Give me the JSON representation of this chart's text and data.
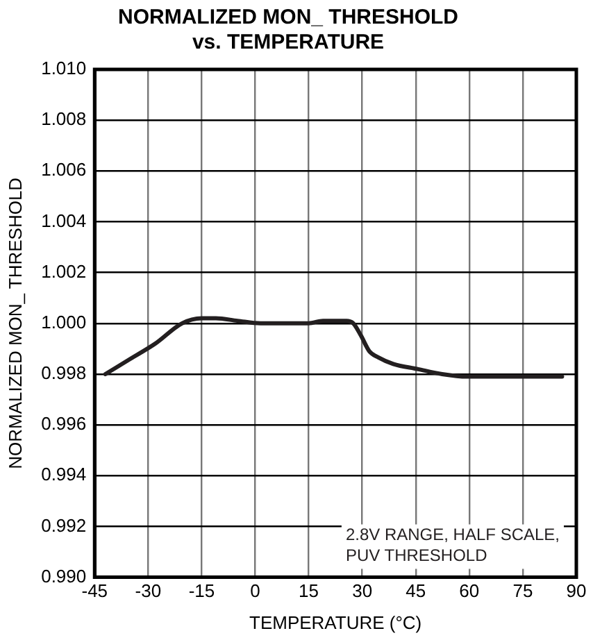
{
  "chart_data": {
    "type": "line",
    "title": "NORMALIZED MON_ THRESHOLD\nvs. TEMPERATURE",
    "xlabel": "TEMPERATURE (°C)",
    "ylabel": "NORMALIZED MON_ THRESHOLD",
    "x": [
      -42,
      -35,
      -28,
      -20.5,
      -15,
      -11,
      -5,
      1.5,
      8,
      15,
      19,
      25.6,
      27.5,
      29.7,
      32,
      34.5,
      38.7,
      45.5,
      52.4,
      59.3,
      70,
      86
    ],
    "series": [
      {
        "color": "#231f20",
        "values": [
          0.998,
          0.9986,
          0.9992,
          1.0,
          1.0002,
          1.0002,
          1.0001,
          1.0,
          1.0,
          1.0,
          1.0001,
          1.0001,
          1.0,
          0.9995,
          0.9989,
          0.99866,
          0.9984,
          0.9982,
          0.998,
          0.9979,
          0.9979,
          0.9979
        ]
      }
    ],
    "xlim": [
      -45,
      90
    ],
    "xticks": [
      -45,
      -30,
      -15,
      0,
      15,
      30,
      45,
      60,
      75,
      90
    ],
    "ylim": [
      0.99,
      1.01
    ],
    "yticks": [
      {
        "value": 0.99,
        "label": "0.990"
      },
      {
        "value": 0.992,
        "label": "0.992"
      },
      {
        "value": 0.994,
        "label": "0.994"
      },
      {
        "value": 0.996,
        "label": "0.996"
      },
      {
        "value": 0.998,
        "label": "0.998"
      },
      {
        "value": 1.0,
        "label": "1.000"
      },
      {
        "value": 1.002,
        "label": "1.002"
      },
      {
        "value": 1.004,
        "label": "1.004"
      },
      {
        "value": 1.006,
        "label": "1.006"
      },
      {
        "value": 1.008,
        "label": "1.008"
      },
      {
        "value": 1.01,
        "label": "1.010"
      }
    ],
    "grid": true,
    "marker": "none",
    "line_style": "solid",
    "annotations": [
      "2.8V RANGE, HALF SCALE,\nPUV THRESHOLD"
    ]
  }
}
